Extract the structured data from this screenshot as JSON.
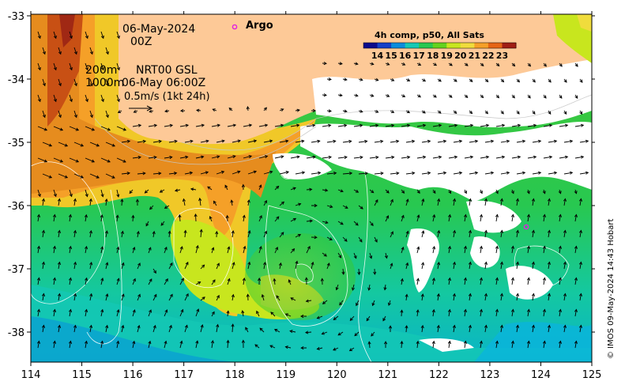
{
  "header": {
    "date": "06-May-2024",
    "hour": "00Z",
    "argo_label": "Argo",
    "depth_200": "200m",
    "depth_1000": "1000m",
    "product_line1": "NRT00 GSL",
    "product_line2": "06-May 06:00Z",
    "vector_scale": "0.5m/s (1kt 24h)"
  },
  "legend": {
    "title": "4h comp, p50, All Sats",
    "ticks": [
      "14",
      "15",
      "16",
      "17",
      "18",
      "19",
      "20",
      "21",
      "22",
      "23"
    ],
    "colors": [
      "#0a0a8c",
      "#1440c8",
      "#0a8cdc",
      "#14c8b4",
      "#28c850",
      "#64d21e",
      "#c8e61e",
      "#f0dc3c",
      "#f5a028",
      "#e66414",
      "#a01e14"
    ]
  },
  "axes": {
    "x_ticks": [
      "114",
      "115",
      "116",
      "117",
      "118",
      "119",
      "120",
      "121",
      "122",
      "123",
      "124",
      "125"
    ],
    "y_ticks": [
      "-33",
      "-34",
      "-35",
      "-36",
      "-37",
      "-38"
    ]
  },
  "colors": {
    "land": "#fdc997",
    "cloud": "#ffffff",
    "argo": "#e020e0"
  },
  "copyright": "© IMOS 09-May-2024 14:43 Hobart"
}
